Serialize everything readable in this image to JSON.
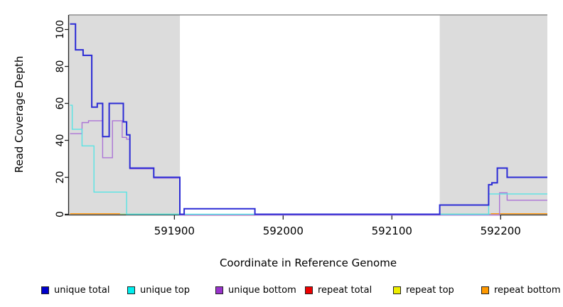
{
  "chart_data": {
    "type": "line",
    "subtype": "step-coverage",
    "title": "",
    "xlabel": "Coordinate in Reference Genome",
    "ylabel": "Read Coverage Depth",
    "xlim": [
      591803,
      592243
    ],
    "ylim": [
      0,
      108
    ],
    "x_ticks": [
      591900,
      592000,
      592100,
      592200
    ],
    "y_ticks": [
      0,
      20,
      40,
      60,
      80,
      100
    ],
    "grid": false,
    "legend_position": "bottom",
    "shaded_regions": [
      {
        "name": "left-gray-band",
        "from": 591803,
        "to": 591905,
        "color": "#DCDCDC"
      },
      {
        "name": "right-gray-band",
        "from": 592144,
        "to": 592243,
        "color": "#DCDCDC"
      }
    ],
    "series": [
      {
        "name": "unique total",
        "swatch_color": "#0000CC",
        "line_color": "#2B2BD5",
        "line_width": 2.0,
        "points": [
          [
            591804,
            103
          ],
          [
            591809,
            89
          ],
          [
            591816,
            86
          ],
          [
            591824,
            58
          ],
          [
            591829,
            60
          ],
          [
            591834,
            42
          ],
          [
            591840,
            60
          ],
          [
            591853,
            50
          ],
          [
            591856,
            43
          ],
          [
            591859,
            25
          ],
          [
            591881,
            20
          ],
          [
            591905,
            0
          ],
          [
            591909,
            3
          ],
          [
            591974,
            0
          ],
          [
            592144,
            5
          ],
          [
            592189,
            16
          ],
          [
            592192,
            17
          ],
          [
            592197,
            25
          ],
          [
            592206,
            20
          ],
          [
            592243,
            20
          ]
        ]
      },
      {
        "name": "unique top",
        "swatch_color": "#00EEEE",
        "line_color": "#58E4E4",
        "line_width": 1.4,
        "points": [
          [
            591804,
            59
          ],
          [
            591806,
            46
          ],
          [
            591815,
            37
          ],
          [
            591826,
            12
          ],
          [
            591856,
            0
          ],
          [
            592189,
            11
          ],
          [
            592243,
            11
          ]
        ]
      },
      {
        "name": "unique bottom",
        "swatch_color": "#9933CC",
        "line_color": "#AB74D6",
        "line_width": 1.4,
        "points": [
          [
            591804,
            44
          ],
          [
            591815,
            50
          ],
          [
            591821,
            51
          ],
          [
            591834,
            31
          ],
          [
            591843,
            51
          ],
          [
            591852,
            42
          ],
          [
            591856,
            41
          ],
          [
            591859,
            25
          ],
          [
            591881,
            20
          ],
          [
            591905,
            0
          ],
          [
            592199,
            12
          ],
          [
            592206,
            8
          ],
          [
            592243,
            8
          ]
        ]
      },
      {
        "name": "repeat total",
        "swatch_color": "#EE0000",
        "line_color": "#DC5A6A",
        "line_width": 1.2,
        "points": [
          [
            591804,
            0
          ],
          [
            592243,
            0
          ]
        ]
      },
      {
        "name": "repeat top",
        "swatch_color": "#EEEE00",
        "line_color": "#97DB97",
        "line_width": 1.2,
        "points": [
          [
            591804,
            0
          ],
          [
            592243,
            0
          ]
        ]
      },
      {
        "name": "repeat bottom",
        "swatch_color": "#FF9900",
        "line_color": "#FF9912",
        "line_width": 1.6,
        "points": [
          [
            591804,
            0
          ],
          [
            592243,
            0
          ]
        ]
      }
    ],
    "zero_line_visible_segments": [
      {
        "series": "repeat bottom",
        "color": "#FF9912",
        "from": 591804,
        "to": 591850,
        "dy": -0.8
      },
      {
        "series": "repeat top",
        "color": "#97DB97",
        "from": 591850,
        "to": 591905,
        "dy": -0.3
      },
      {
        "series": "repeat top",
        "color": "#97DB97",
        "from": 592144,
        "to": 592191,
        "dy": -0.3
      },
      {
        "series": "repeat bottom",
        "color": "#FF9912",
        "from": 592191,
        "to": 592243,
        "dy": -0.8
      },
      {
        "series": "repeat total",
        "color": "#DC5A6A",
        "from": 591909,
        "to": 591974,
        "dy": 1.3
      }
    ]
  },
  "legend": {
    "items": [
      {
        "label": "unique total",
        "color": "#0000CC"
      },
      {
        "label": "unique top",
        "color": "#00EEEE"
      },
      {
        "label": "unique bottom",
        "color": "#9933CC"
      },
      {
        "label": "repeat total",
        "color": "#EE0000"
      },
      {
        "label": "repeat top",
        "color": "#EEEE00"
      },
      {
        "label": "repeat bottom",
        "color": "#FF9900"
      }
    ]
  }
}
